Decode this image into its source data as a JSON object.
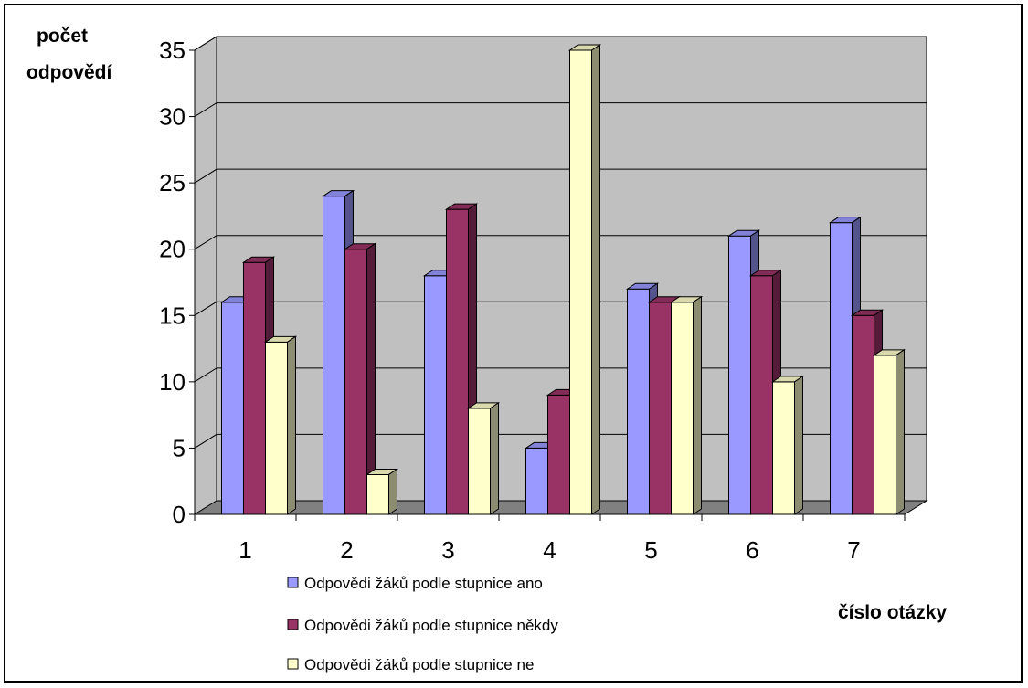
{
  "chart_data": {
    "type": "bar",
    "categories": [
      "1",
      "2",
      "3",
      "4",
      "5",
      "6",
      "7"
    ],
    "series": [
      {
        "name": "Odpovědi žáků podle stupnice ano",
        "values": [
          16,
          24,
          18,
          5,
          17,
          21,
          22
        ],
        "color": "#9999ff"
      },
      {
        "name": "Odpovědi žáků podle stupnice někdy",
        "values": [
          19,
          20,
          23,
          9,
          16,
          18,
          15
        ],
        "color": "#993366"
      },
      {
        "name": "Odpovědi žáků podle stupnice ne",
        "values": [
          13,
          3,
          8,
          35,
          16,
          10,
          12
        ],
        "color": "#ffffcc"
      }
    ],
    "ylim": [
      0,
      35
    ],
    "yticks": [
      0,
      5,
      10,
      15,
      20,
      25,
      30,
      35
    ],
    "ylabel_line1": "počet",
    "ylabel_line2": "odpovědí",
    "xlabel": "číslo otázky",
    "grid": true,
    "legend_position": "bottom",
    "wall_color": "#c0c0c0",
    "floor_color": "#808080"
  }
}
